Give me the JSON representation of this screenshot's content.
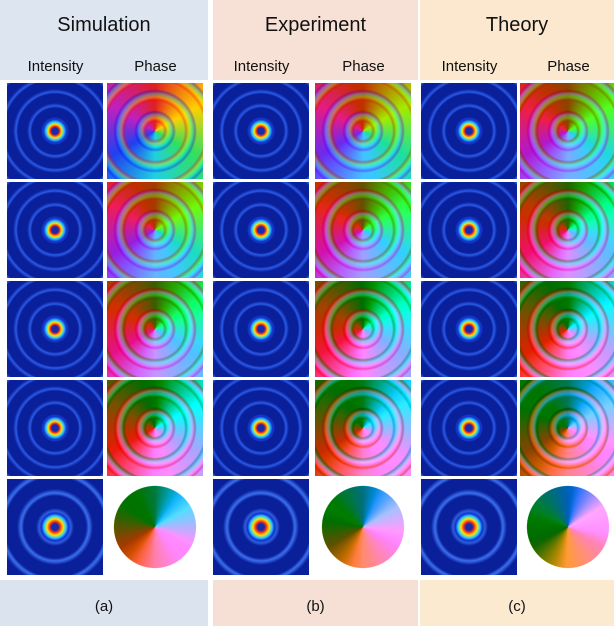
{
  "panels": [
    {
      "title": "Simulation",
      "columns": [
        "Intensity",
        "Phase"
      ],
      "label": "(a)"
    },
    {
      "title": "Experiment",
      "columns": [
        "Intensity",
        "Phase"
      ],
      "label": "(b)"
    },
    {
      "title": "Theory",
      "columns": [
        "Intensity",
        "Phase"
      ],
      "label": "(c)"
    }
  ]
}
